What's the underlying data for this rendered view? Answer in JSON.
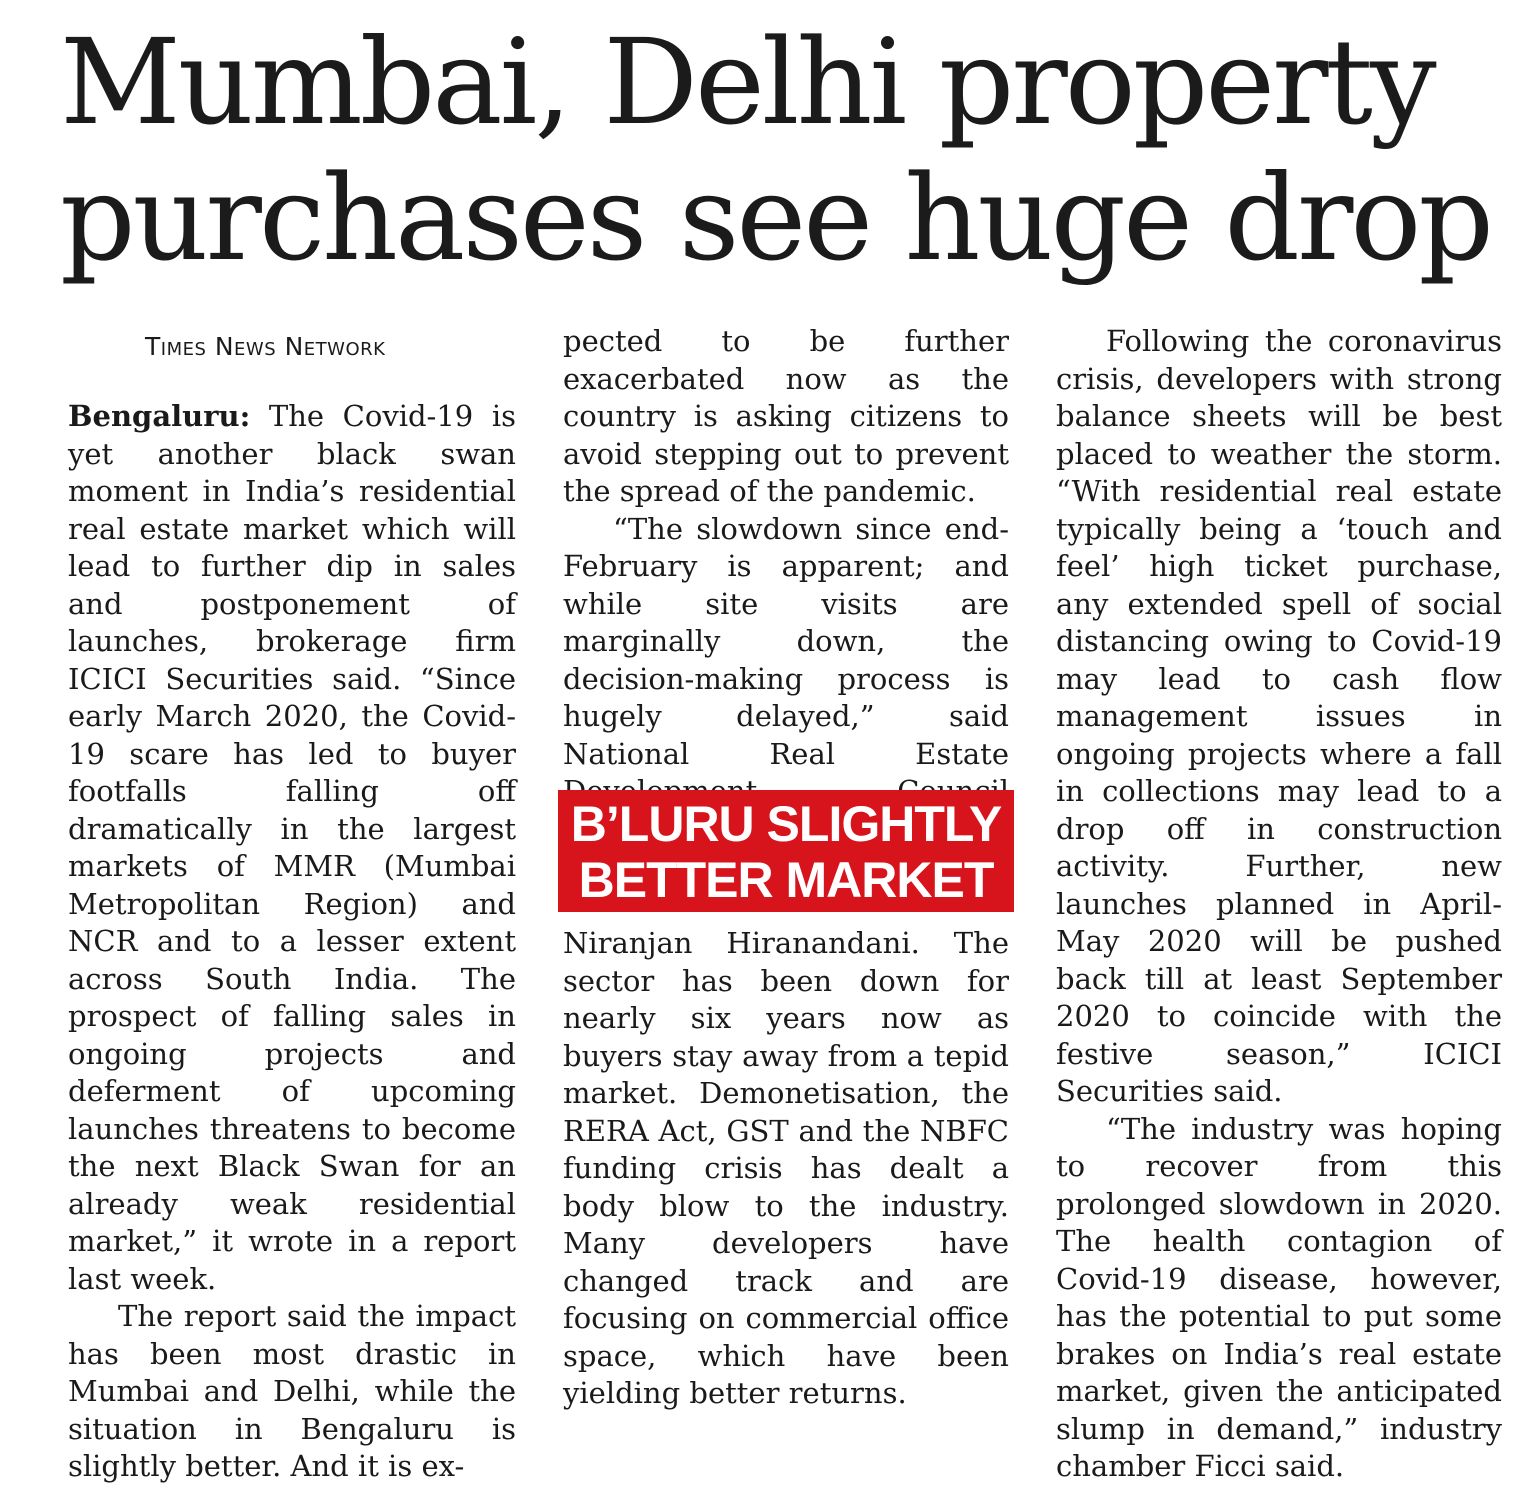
{
  "article": {
    "headline_line1": "Mumbai, Delhi property",
    "headline_line2": "purchases see huge drop",
    "byline": "Times News Network",
    "dateline": "Bengaluru:",
    "col1_p1": "The Covid-19 is yet another black swan moment in India’s residential real estate market which will lead to further dip in sales and postponement of launches, brokerage firm ICICI Securities said. “Since early March 2020, the Covid-19 scare has led to buyer footfalls falling off dramatically in the largest markets of MMR (Mumbai Metropolitan Region) and NCR and to a lesser extent across South India. The prospect of falling sales in ongoing projects and deferment of upcoming launches threatens to become the next Black Swan for an already weak residential market,” it wrote in a report last week.",
    "col1_p2": "The report said the impact has been most drastic in Mumbai and Delhi, while the situation in Bengaluru is slightly better. And it is ex-",
    "col2_p1": "pected to be further exacerbated now as the country is asking citizens to avoid stepping out to prevent the spread of the pandemic.",
    "col2_p2": "“The slowdown since end-February is apparent; and while site visits are marginally down, the decision-making process is hugely delayed,” said National Real Estate Development Council president",
    "col2_p3": "Niranjan Hiranandani. The sector has been down for nearly six years now as buyers stay away from a tepid market. Demonetisation, the RERA Act, GST and the NBFC funding crisis has dealt a body blow to the industry. Many developers have changed track and are focusing on commercial office space, which have been yielding better returns.",
    "col3_p1": "Following the coronavirus crisis, developers with strong balance sheets will be best placed to weather the storm. “With residential real estate typically being a ‘touch and feel’ high ticket purchase, any extended spell of social distancing owing to Covid-19 may lead to cash flow management issues in ongoing projects where a fall in collections may lead to a drop off in construction activity. Further, new launches planned in April-May 2020 will be pushed back till at least September 2020 to coincide with the festive season,” ICICI Securities said.",
    "col3_p2": "“The industry was hoping to recover from this prolonged slowdown in 2020. The health contagion of Covid-19 disease, however, has the potential to put some brakes on India’s real estate market, given the anticipated slump in demand,” industry chamber Ficci said."
  },
  "callout": {
    "line1": "B’LURU SLIGHTLY",
    "line2": "BETTER MARKET",
    "bg_color": "#d7141b"
  }
}
